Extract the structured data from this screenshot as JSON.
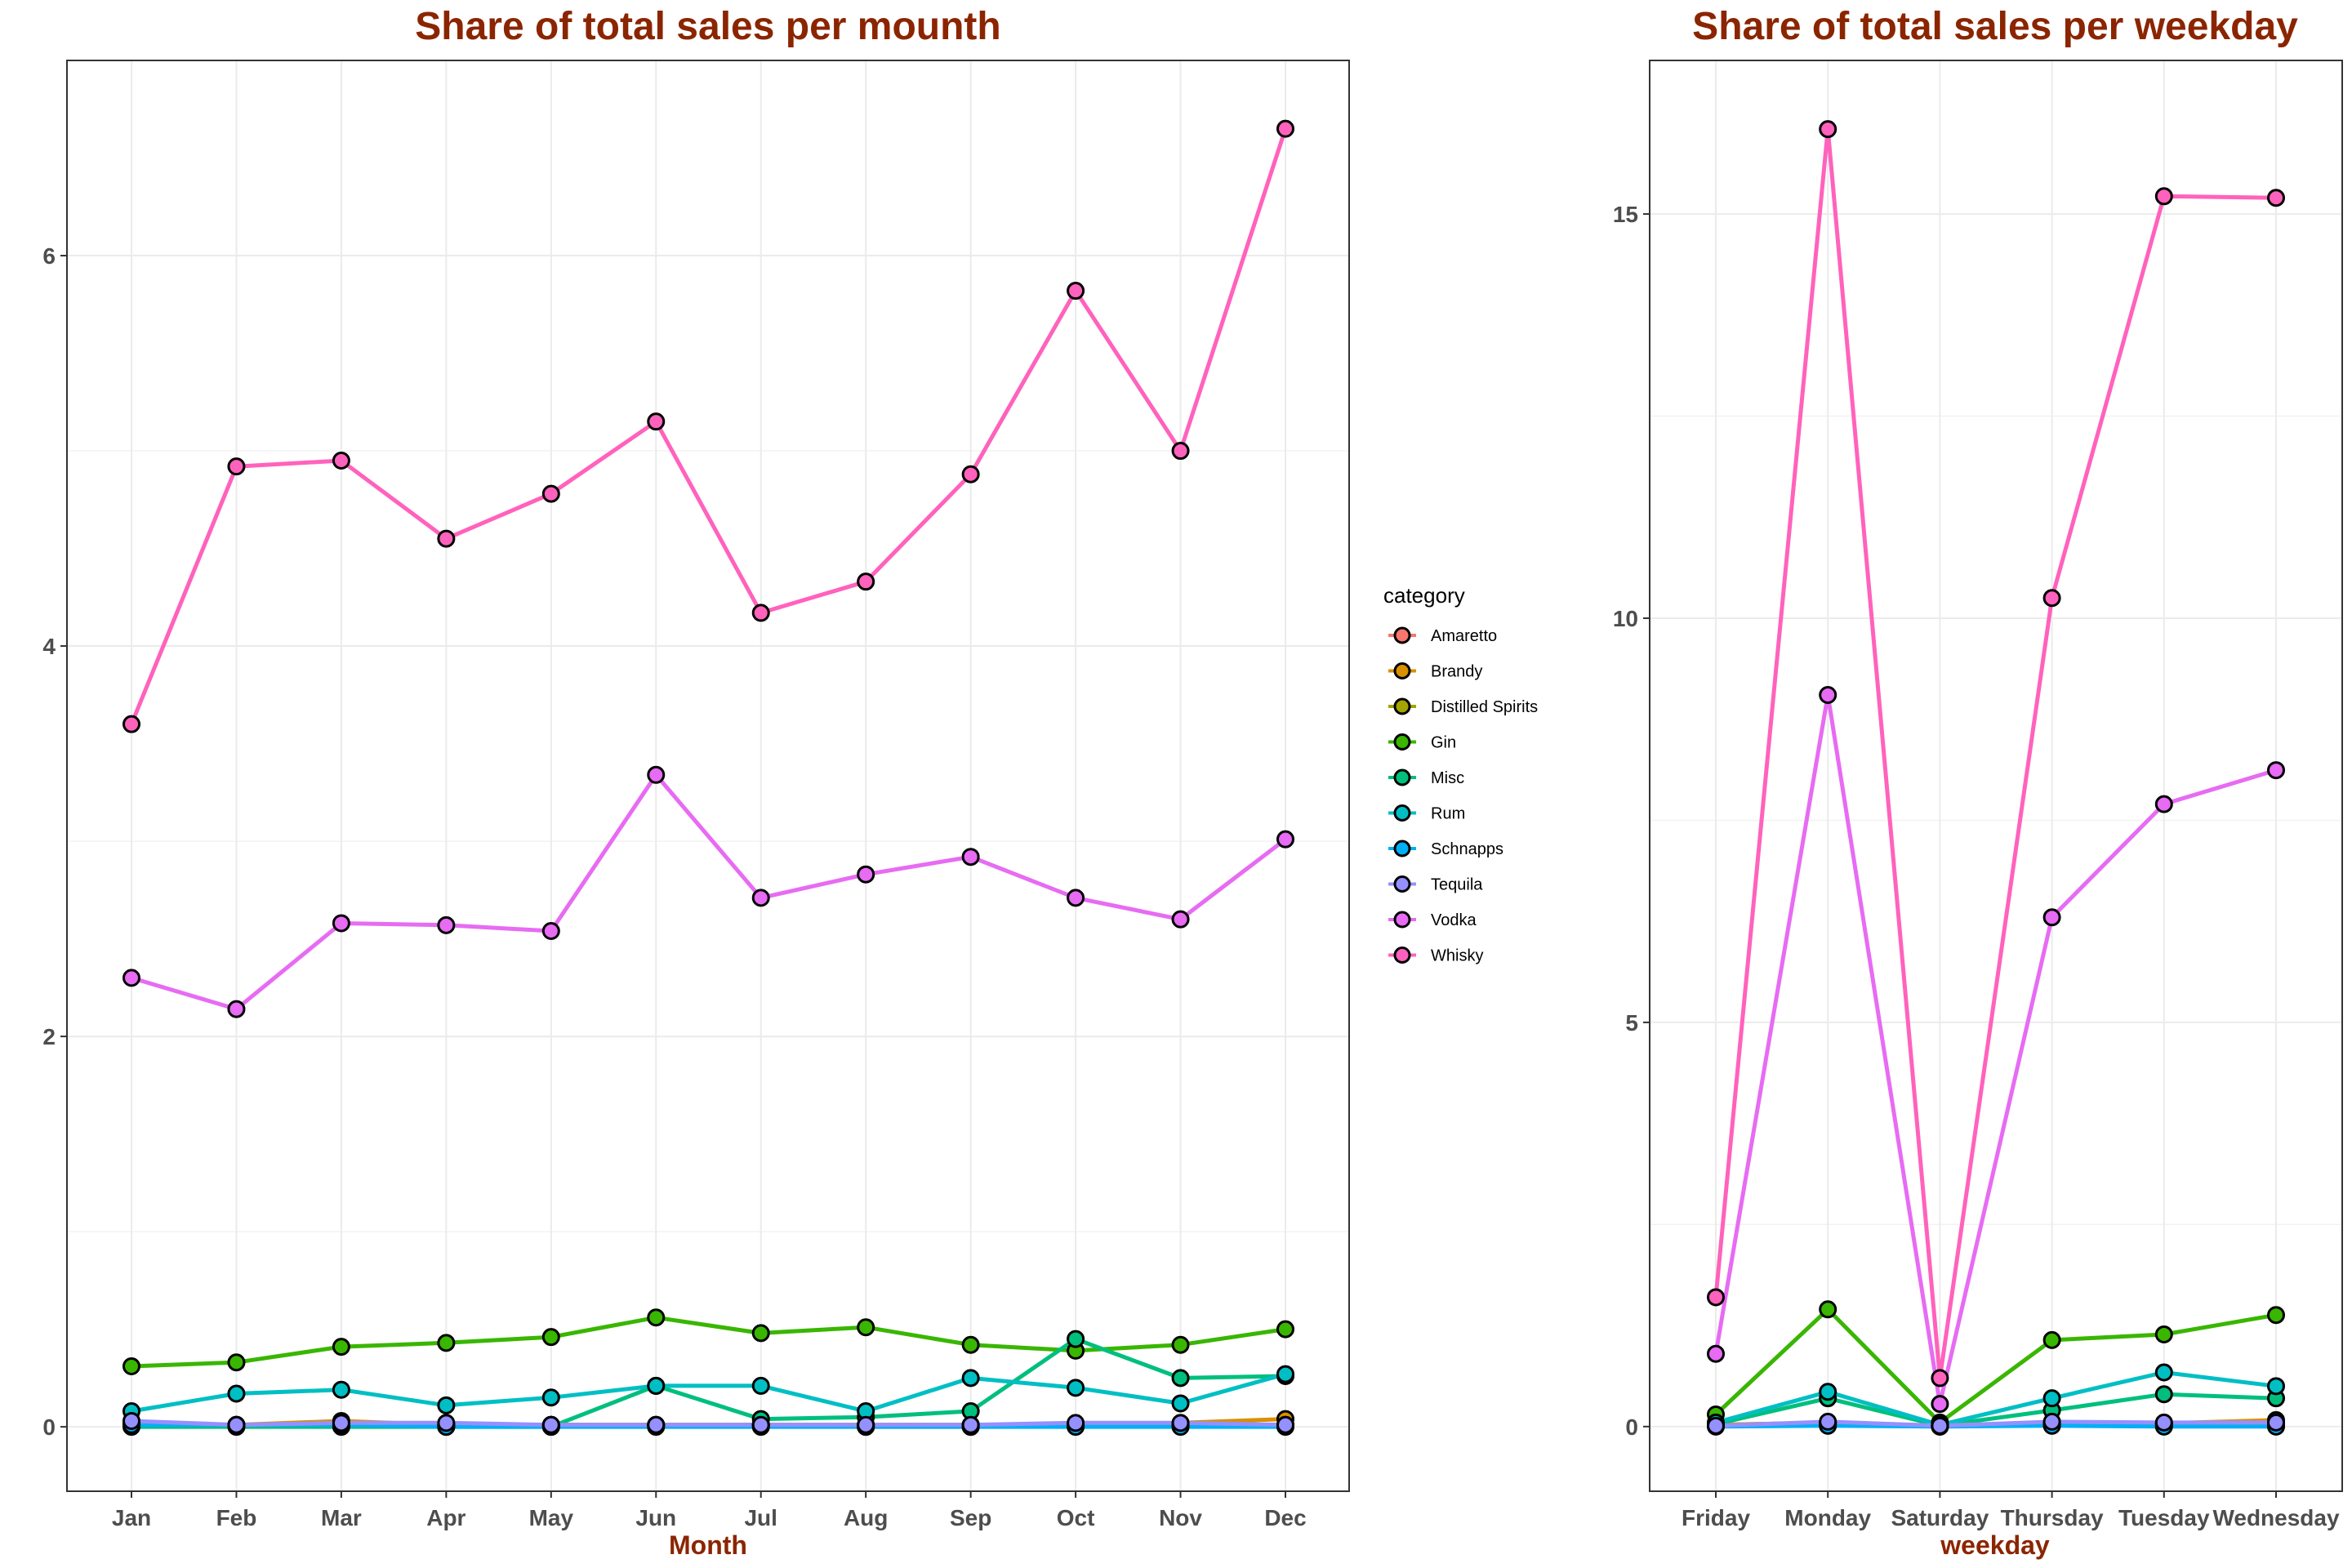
{
  "chart_data": [
    {
      "type": "line",
      "title": "Share of total sales per mounth",
      "xlabel": "Month",
      "ylabel": "",
      "categories": [
        "Jan",
        "Feb",
        "Mar",
        "Apr",
        "May",
        "Jun",
        "Jul",
        "Aug",
        "Sep",
        "Oct",
        "Nov",
        "Dec"
      ],
      "ylim": [
        -0.33,
        7.0
      ],
      "yticks": [
        0,
        2,
        4,
        6
      ],
      "grid": true,
      "series": [
        {
          "name": "Amaretto",
          "color": "#F8766D",
          "values": [
            0.02,
            0.01,
            0.02,
            0.01,
            0.01,
            0.01,
            0.01,
            0.01,
            0.01,
            0.01,
            0.01,
            0.01
          ]
        },
        {
          "name": "Brandy",
          "color": "#D89000",
          "values": [
            0.02,
            0.01,
            0.03,
            0.01,
            0.01,
            0.01,
            0.01,
            0.0,
            0.0,
            0.01,
            0.02,
            0.04
          ]
        },
        {
          "name": "Distilled Spirits",
          "color": "#A3A500",
          "values": [
            0.01,
            0.01,
            0.01,
            0.01,
            0.01,
            0.01,
            0.01,
            0.01,
            0.01,
            0.01,
            0.01,
            0.01
          ]
        },
        {
          "name": "Gin",
          "color": "#39B600",
          "values": [
            0.31,
            0.33,
            0.41,
            0.43,
            0.46,
            0.56,
            0.48,
            0.51,
            0.42,
            0.39,
            0.42,
            0.5
          ]
        },
        {
          "name": "Misc",
          "color": "#00BF7D",
          "values": [
            0.0,
            0.0,
            0.0,
            0.0,
            0.0,
            0.21,
            0.04,
            0.05,
            0.08,
            0.45,
            0.25,
            0.26
          ]
        },
        {
          "name": "Rum",
          "color": "#00BFC4",
          "values": [
            0.08,
            0.17,
            0.19,
            0.11,
            0.15,
            0.21,
            0.21,
            0.08,
            0.25,
            0.2,
            0.12,
            0.27
          ]
        },
        {
          "name": "Schnapps",
          "color": "#00B0F6",
          "values": [
            0.01,
            0.01,
            0.01,
            0.0,
            0.0,
            0.0,
            0.0,
            0.0,
            0.0,
            0.0,
            0.0,
            0.0
          ]
        },
        {
          "name": "Tequila",
          "color": "#9590FF",
          "values": [
            0.03,
            0.01,
            0.02,
            0.02,
            0.01,
            0.01,
            0.01,
            0.01,
            0.01,
            0.02,
            0.02,
            0.01
          ]
        },
        {
          "name": "Vodka",
          "color": "#E76BF3",
          "values": [
            2.3,
            2.14,
            2.58,
            2.57,
            2.54,
            3.34,
            2.71,
            2.83,
            2.92,
            2.71,
            2.6,
            3.01
          ]
        },
        {
          "name": "Whisky",
          "color": "#FF62BC",
          "values": [
            3.6,
            4.92,
            4.95,
            4.55,
            4.78,
            5.15,
            4.17,
            4.33,
            4.88,
            5.82,
            5.0,
            6.65
          ]
        }
      ]
    },
    {
      "type": "line",
      "title": "Share of total sales per weekday",
      "xlabel": "weekday",
      "ylabel": "",
      "categories": [
        "Friday",
        "Monday",
        "Saturday",
        "Thursday",
        "Tuesday",
        "Wednesday"
      ],
      "ylim": [
        -0.8,
        16.9
      ],
      "yticks": [
        0,
        5,
        10,
        15
      ],
      "grid": true,
      "series": [
        {
          "name": "Amaretto",
          "color": "#F8766D",
          "values": [
            0.02,
            0.05,
            0.01,
            0.05,
            0.04,
            0.03
          ]
        },
        {
          "name": "Brandy",
          "color": "#D89000",
          "values": [
            0.02,
            0.05,
            0.01,
            0.05,
            0.04,
            0.08
          ]
        },
        {
          "name": "Distilled Spirits",
          "color": "#A3A500",
          "values": [
            0.01,
            0.02,
            0.0,
            0.02,
            0.02,
            0.02
          ]
        },
        {
          "name": "Gin",
          "color": "#39B600",
          "values": [
            0.15,
            1.45,
            0.05,
            1.07,
            1.14,
            1.38
          ]
        },
        {
          "name": "Misc",
          "color": "#00BF7D",
          "values": [
            0.03,
            0.35,
            0.01,
            0.2,
            0.4,
            0.35
          ]
        },
        {
          "name": "Rum",
          "color": "#00BFC4",
          "values": [
            0.05,
            0.43,
            0.02,
            0.35,
            0.67,
            0.5
          ]
        },
        {
          "name": "Schnapps",
          "color": "#00B0F6",
          "values": [
            0.0,
            0.01,
            0.0,
            0.01,
            0.0,
            0.0
          ]
        },
        {
          "name": "Tequila",
          "color": "#9590FF",
          "values": [
            0.01,
            0.06,
            0.01,
            0.06,
            0.05,
            0.05
          ]
        },
        {
          "name": "Vodka",
          "color": "#E76BF3",
          "values": [
            0.9,
            9.05,
            0.28,
            6.3,
            7.7,
            8.12
          ]
        },
        {
          "name": "Whisky",
          "color": "#FF62BC",
          "values": [
            1.6,
            16.05,
            0.6,
            10.25,
            15.22,
            15.2
          ]
        }
      ]
    }
  ],
  "legend": {
    "title": "category",
    "position": "between-panels",
    "items": [
      "Amaretto",
      "Brandy",
      "Distilled Spirits",
      "Gin",
      "Misc",
      "Rum",
      "Schnapps",
      "Tequila",
      "Vodka",
      "Whisky"
    ]
  }
}
